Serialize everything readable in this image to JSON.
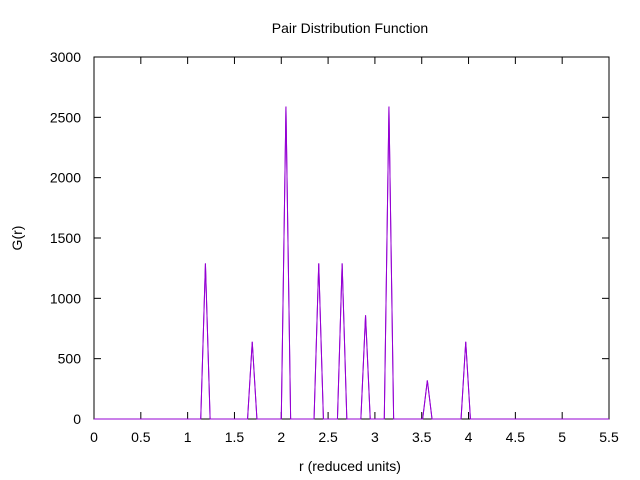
{
  "chart_data": {
    "type": "line",
    "title": "Pair Distribution Function",
    "xlabel": "r (reduced units)",
    "ylabel": "G(r)",
    "xlim": [
      0,
      5.5
    ],
    "ylim": [
      0,
      3000
    ],
    "xticks": [
      0,
      0.5,
      1,
      1.5,
      2,
      2.5,
      3,
      3.5,
      4,
      4.5,
      5,
      5.5
    ],
    "xtick_labels": [
      "0",
      "0.5",
      "1",
      "1.5",
      "2",
      "2.5",
      "3",
      "3.5",
      "4",
      "4.5",
      "5",
      "5.5"
    ],
    "yticks": [
      0,
      500,
      1000,
      1500,
      2000,
      2500,
      3000
    ],
    "ytick_labels": [
      "0",
      "500",
      "1000",
      "1500",
      "2000",
      "2500",
      "3000"
    ],
    "grid": false,
    "series": [
      {
        "color": "#9400d3",
        "peaks": [
          {
            "r": 1.19,
            "height": 1290
          },
          {
            "r": 1.69,
            "height": 640
          },
          {
            "r": 2.05,
            "height": 2590
          },
          {
            "r": 2.4,
            "height": 1290
          },
          {
            "r": 2.65,
            "height": 1290
          },
          {
            "r": 2.9,
            "height": 860
          },
          {
            "r": 3.15,
            "height": 2590
          },
          {
            "r": 3.56,
            "height": 320
          },
          {
            "r": 3.97,
            "height": 640
          }
        ],
        "peak_halfwidth": 0.05
      }
    ]
  }
}
